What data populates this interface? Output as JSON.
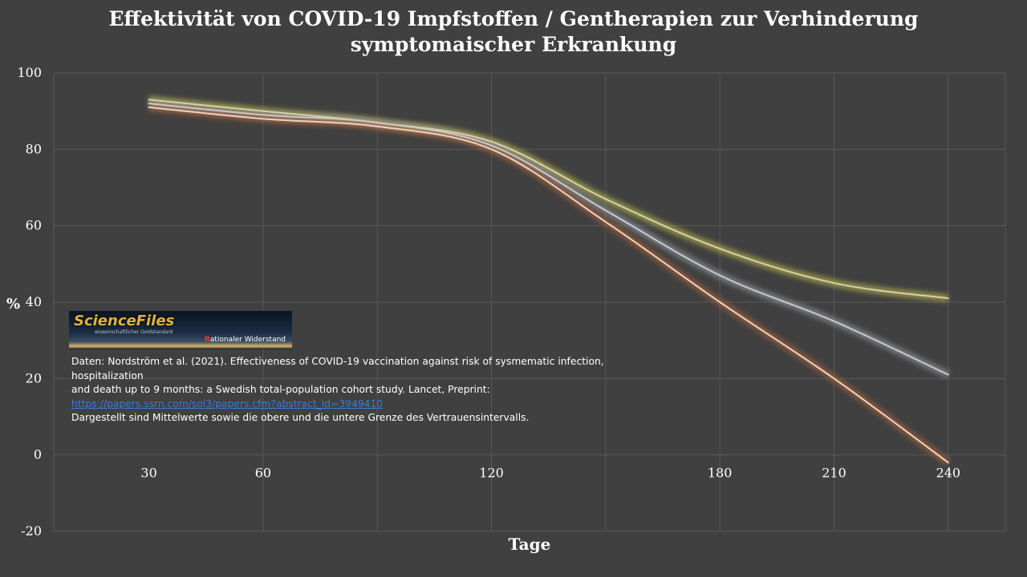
{
  "chart_data": {
    "type": "line",
    "title": "Effektivität von COVID-19 Impfstoffen / Gentherapien zur Verhinderung symptomaischer Erkrankung",
    "title_lines": [
      "Effektivität von COVID-19 Impfstoffen / Gentherapien zur Verhinderung",
      "symptomaischer Erkrankung"
    ],
    "xlabel": "Tage",
    "ylabel": "%",
    "x": [
      30,
      60,
      90,
      120,
      150,
      180,
      210,
      240
    ],
    "xticks": [
      "30",
      "60",
      "120",
      "180",
      "210",
      "240"
    ],
    "xtick_values": [
      30,
      60,
      120,
      180,
      210,
      240
    ],
    "xlim": [
      5,
      255
    ],
    "ylim": [
      -20,
      100
    ],
    "yticks": [
      "-20",
      "0",
      "20",
      "40",
      "60",
      "80",
      "100"
    ],
    "ytick_values": [
      -20,
      0,
      20,
      40,
      60,
      80,
      100
    ],
    "grid": true,
    "series": [
      {
        "values": [
          93,
          90,
          87,
          82,
          67,
          54,
          45,
          41
        ],
        "color": "#d6cfae",
        "glow": "#c5c24a"
      },
      {
        "values": [
          92,
          89,
          87,
          81,
          64,
          47,
          35,
          21
        ],
        "color": "#c8c8c8",
        "glow": "#9aa0a8"
      },
      {
        "values": [
          91,
          88,
          86,
          80,
          61,
          40,
          20,
          -2
        ],
        "color": "#eed3c2",
        "glow": "#b0643a"
      }
    ]
  },
  "logo": {
    "name": "ScienceFiles",
    "tagline": "wissenschaftlicher Goldstandard",
    "subtitle_first": "R",
    "subtitle_rest": "ationaler Widerstand"
  },
  "source": {
    "line1": "Daten: Nordström et al. (2021).  Effectiveness of COVID-19 vaccination against risk of sysmematic infection, hospitalization",
    "line2": "and death up to 9 months: a Swedish total-population cohort study. Lancet, Preprint:",
    "link": "https://papers.ssrn.com/sol3/papers.cfm?abstract_id=3949410",
    "line4": "Dargestellt sind Mittelwerte sowie die obere und die untere Grenze des Vertrauensintervalls."
  }
}
